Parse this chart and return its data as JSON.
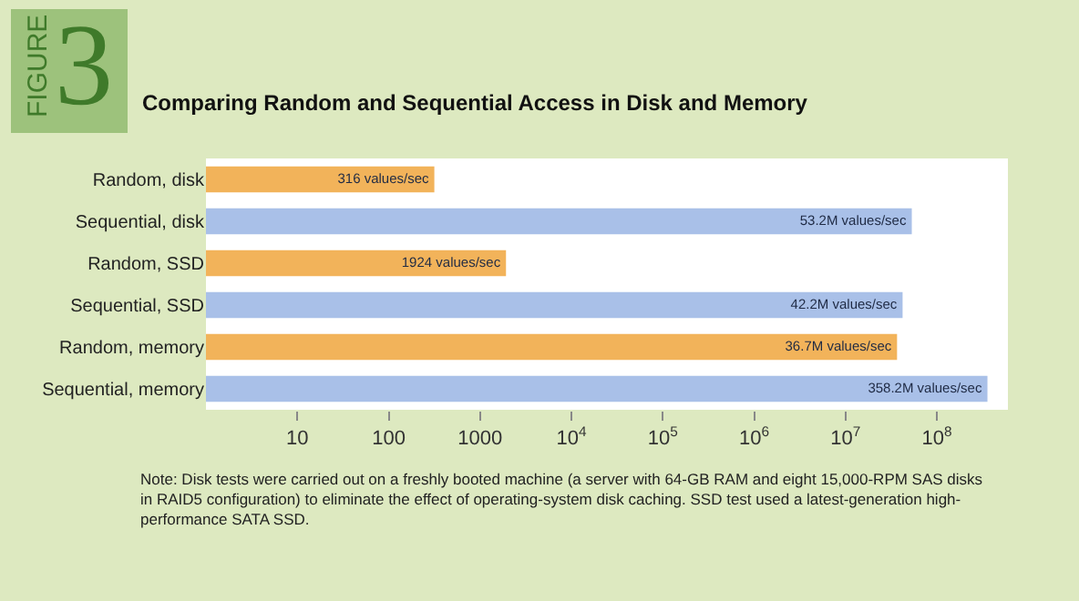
{
  "chart_data": {
    "type": "bar",
    "orientation": "horizontal",
    "log": "x",
    "title": "Comparing Random and Sequential Access in Disk and Memory",
    "categories": [
      "Random, disk",
      "Sequential, disk",
      "Random, SSD",
      "Sequential, SSD",
      "Random, memory",
      "Sequential, memory"
    ],
    "values": [
      316,
      53200000,
      1924,
      42200000,
      36700000,
      358200000
    ],
    "colors": [
      "#f2b35a",
      "#a9c0e8",
      "#f2b35a",
      "#a9c0e8",
      "#f2b35a",
      "#a9c0e8"
    ],
    "value_labels": [
      "316 values/sec",
      "53.2M values/sec",
      "1924 values/sec",
      "42.2M values/sec",
      "36.7M values/sec",
      "358.2M values/sec"
    ],
    "xlim": [
      1,
      600000000
    ],
    "xticks": [
      10,
      100,
      1000,
      {
        "value": 10000,
        "label": "10$^{4}$"
      },
      {
        "value": 100000,
        "label": "10$^{5}$"
      },
      {
        "value": 1000000,
        "label": "10$^{6}$"
      },
      {
        "value": 10000000,
        "label": "10$^{7}$"
      },
      {
        "value": 100000000,
        "label": "10$^{8}$"
      }
    ],
    "annotations": [
      "FIGURE",
      "3",
      "Note: Disk tests were carried out on a freshly booted machine (a server with 64-GB RAM and eight 15,000-RPM SAS disks in RAID5 configuration) to eliminate the effect of operating-system disk caching. SSD test used a latest-generation high-performance SATA SSD."
    ]
  }
}
